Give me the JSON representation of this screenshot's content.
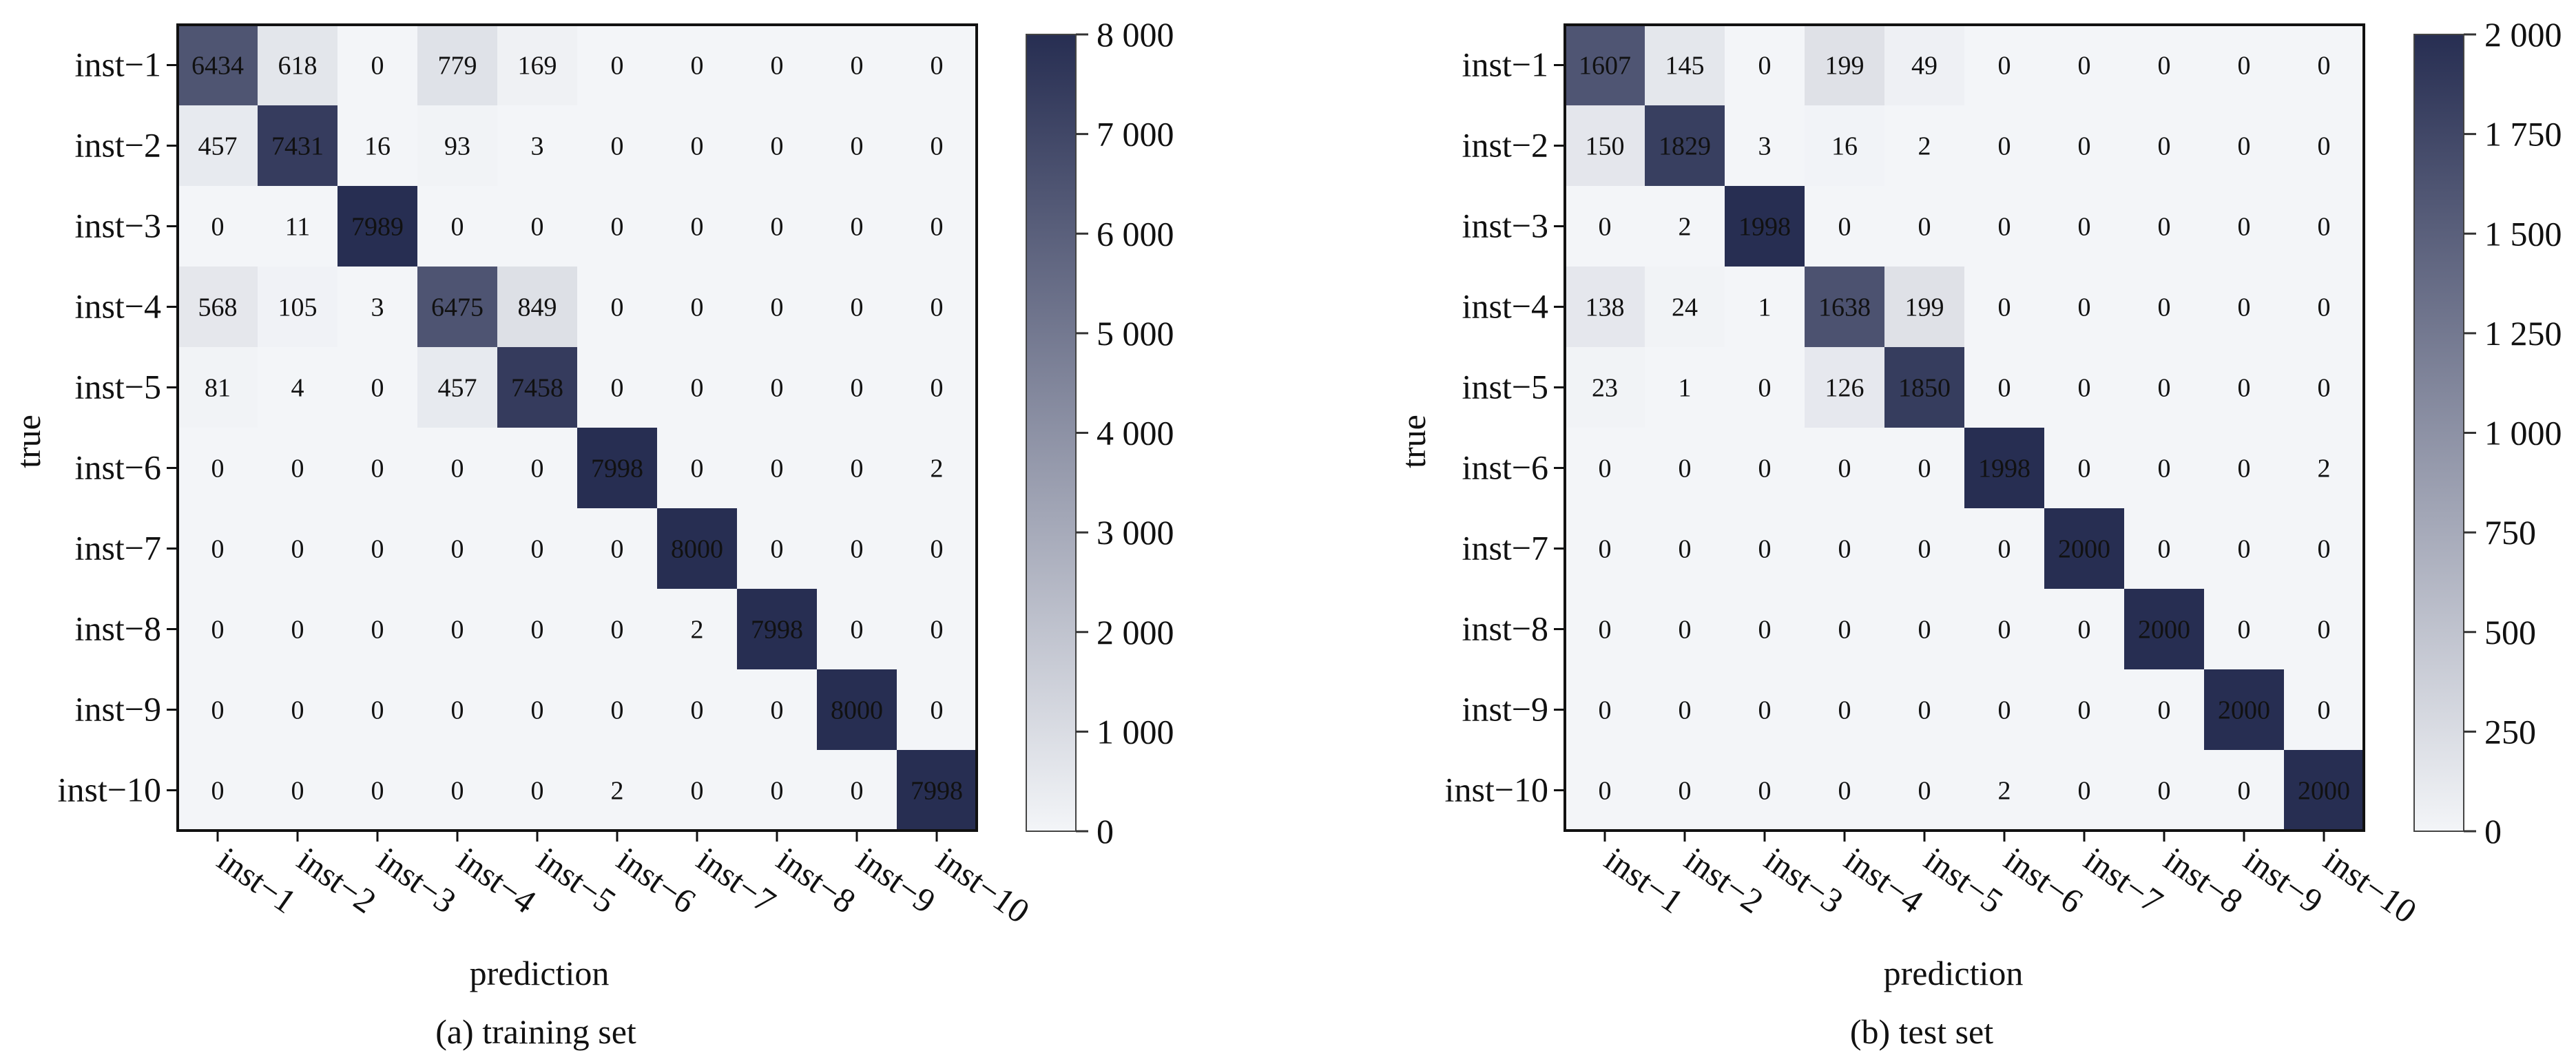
{
  "chart_data": [
    {
      "type": "heatmap",
      "caption": "(a) training set",
      "xlabel": "prediction",
      "ylabel": "true",
      "x_categories": [
        "inst−1",
        "inst−2",
        "inst−3",
        "inst−4",
        "inst−5",
        "inst−6",
        "inst−7",
        "inst−8",
        "inst−9",
        "inst−10"
      ],
      "y_categories": [
        "inst−1",
        "inst−2",
        "inst−3",
        "inst−4",
        "inst−5",
        "inst−6",
        "inst−7",
        "inst−8",
        "inst−9",
        "inst−10"
      ],
      "values": [
        [
          6434,
          618,
          0,
          779,
          169,
          0,
          0,
          0,
          0,
          0
        ],
        [
          457,
          7431,
          16,
          93,
          3,
          0,
          0,
          0,
          0,
          0
        ],
        [
          0,
          11,
          7989,
          0,
          0,
          0,
          0,
          0,
          0,
          0
        ],
        [
          568,
          105,
          3,
          6475,
          849,
          0,
          0,
          0,
          0,
          0
        ],
        [
          81,
          4,
          0,
          457,
          7458,
          0,
          0,
          0,
          0,
          0
        ],
        [
          0,
          0,
          0,
          0,
          0,
          7998,
          0,
          0,
          0,
          2
        ],
        [
          0,
          0,
          0,
          0,
          0,
          0,
          8000,
          0,
          0,
          0
        ],
        [
          0,
          0,
          0,
          0,
          0,
          0,
          2,
          7998,
          0,
          0
        ],
        [
          0,
          0,
          0,
          0,
          0,
          0,
          0,
          0,
          8000,
          0
        ],
        [
          0,
          0,
          0,
          0,
          0,
          2,
          0,
          0,
          0,
          7998
        ]
      ],
      "colorbar": {
        "range": [
          0,
          8000
        ],
        "ticks": [
          0,
          1000,
          2000,
          3000,
          4000,
          5000,
          6000,
          7000,
          8000
        ],
        "tick_labels": [
          "0",
          "1 000",
          "2 000",
          "3 000",
          "4 000",
          "5 000",
          "6 000",
          "7 000",
          "8 000"
        ]
      },
      "colors": {
        "low": "#f3f5f8",
        "high": "#272e52"
      }
    },
    {
      "type": "heatmap",
      "caption": "(b) test set",
      "xlabel": "prediction",
      "ylabel": "true",
      "x_categories": [
        "inst−1",
        "inst−2",
        "inst−3",
        "inst−4",
        "inst−5",
        "inst−6",
        "inst−7",
        "inst−8",
        "inst−9",
        "inst−10"
      ],
      "y_categories": [
        "inst−1",
        "inst−2",
        "inst−3",
        "inst−4",
        "inst−5",
        "inst−6",
        "inst−7",
        "inst−8",
        "inst−9",
        "inst−10"
      ],
      "values": [
        [
          1607,
          145,
          0,
          199,
          49,
          0,
          0,
          0,
          0,
          0
        ],
        [
          150,
          1829,
          3,
          16,
          2,
          0,
          0,
          0,
          0,
          0
        ],
        [
          0,
          2,
          1998,
          0,
          0,
          0,
          0,
          0,
          0,
          0
        ],
        [
          138,
          24,
          1,
          1638,
          199,
          0,
          0,
          0,
          0,
          0
        ],
        [
          23,
          1,
          0,
          126,
          1850,
          0,
          0,
          0,
          0,
          0
        ],
        [
          0,
          0,
          0,
          0,
          0,
          1998,
          0,
          0,
          0,
          2
        ],
        [
          0,
          0,
          0,
          0,
          0,
          0,
          2000,
          0,
          0,
          0
        ],
        [
          0,
          0,
          0,
          0,
          0,
          0,
          0,
          2000,
          0,
          0
        ],
        [
          0,
          0,
          0,
          0,
          0,
          0,
          0,
          0,
          2000,
          0
        ],
        [
          0,
          0,
          0,
          0,
          0,
          2,
          0,
          0,
          0,
          2000
        ]
      ],
      "colorbar": {
        "range": [
          0,
          2000
        ],
        "ticks": [
          0,
          250,
          500,
          750,
          1000,
          1250,
          1500,
          1750,
          2000
        ],
        "tick_labels": [
          "0",
          "250",
          "500",
          "750",
          "1 000",
          "1 250",
          "1 500",
          "1 750",
          "2 000"
        ]
      },
      "colors": {
        "low": "#f3f5f8",
        "high": "#272e52"
      }
    }
  ]
}
